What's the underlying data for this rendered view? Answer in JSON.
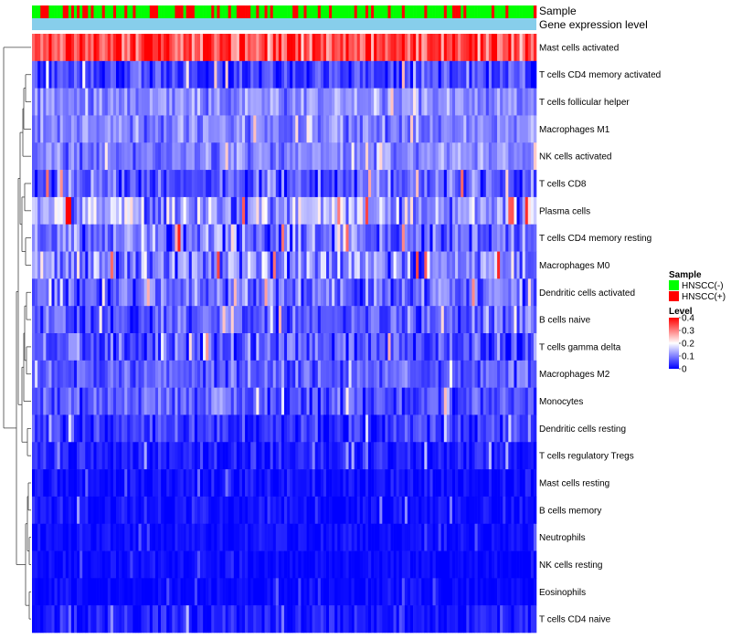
{
  "chart_data": {
    "type": "heatmap",
    "title": "",
    "annotation_labels": {
      "sample": "Sample",
      "expression": "Gene expression level"
    },
    "rows": [
      {
        "name": "Mast cells activated",
        "mean": 0.34,
        "spread": 0.08
      },
      {
        "name": "T cells CD4 memory activated",
        "mean": 0.05,
        "spread": 0.06
      },
      {
        "name": "T cells follicular helper",
        "mean": 0.11,
        "spread": 0.05
      },
      {
        "name": "Macrophages M1",
        "mean": 0.1,
        "spread": 0.05
      },
      {
        "name": "NK cells activated",
        "mean": 0.1,
        "spread": 0.05
      },
      {
        "name": "T cells CD8",
        "mean": 0.07,
        "spread": 0.07
      },
      {
        "name": "Plasma cells",
        "mean": 0.12,
        "spread": 0.09
      },
      {
        "name": "T cells CD4 memory resting",
        "mean": 0.09,
        "spread": 0.08
      },
      {
        "name": "Macrophages M0",
        "mean": 0.1,
        "spread": 0.09
      },
      {
        "name": "Dendritic cells activated",
        "mean": 0.08,
        "spread": 0.07
      },
      {
        "name": "B cells naive",
        "mean": 0.07,
        "spread": 0.06
      },
      {
        "name": "T cells gamma delta",
        "mean": 0.06,
        "spread": 0.07
      },
      {
        "name": "Macrophages M2",
        "mean": 0.07,
        "spread": 0.05
      },
      {
        "name": "Monocytes",
        "mean": 0.07,
        "spread": 0.06
      },
      {
        "name": "Dendritic cells resting",
        "mean": 0.04,
        "spread": 0.05
      },
      {
        "name": "T cells regulatory  Tregs",
        "mean": 0.02,
        "spread": 0.04
      },
      {
        "name": "Mast cells resting",
        "mean": 0.01,
        "spread": 0.03
      },
      {
        "name": "B cells memory",
        "mean": 0.01,
        "spread": 0.03
      },
      {
        "name": "Neutrophils",
        "mean": 0.01,
        "spread": 0.02
      },
      {
        "name": "NK cells resting",
        "mean": 0.005,
        "spread": 0.02
      },
      {
        "name": "Eosinophils",
        "mean": 0.005,
        "spread": 0.02
      },
      {
        "name": "T cells CD4 naive",
        "mean": 0.02,
        "spread": 0.04
      }
    ],
    "n_samples": 180,
    "sample_groups": [
      {
        "name": "HNSCC(-)",
        "color": "#00ff00"
      },
      {
        "name": "HNSCC(+)",
        "color": "#ff0000"
      }
    ],
    "expression_bar_color": "#87ceeb",
    "color_scale": {
      "title": "Level",
      "min": 0,
      "max": 0.4,
      "ticks": [
        "0.4",
        "0.3",
        "0.2",
        "0.1",
        "0"
      ],
      "tick_values": [
        0.4,
        0.3,
        0.2,
        0.1,
        0
      ],
      "stops": [
        {
          "value": 0,
          "color": "#0000ff"
        },
        {
          "value": 0.2,
          "color": "#ffffff"
        },
        {
          "value": 0.4,
          "color": "#ff0000"
        }
      ]
    },
    "legend": {
      "sample_title": "Sample",
      "level_title": "Level",
      "placement": "right"
    },
    "dendrogram": "rows"
  }
}
